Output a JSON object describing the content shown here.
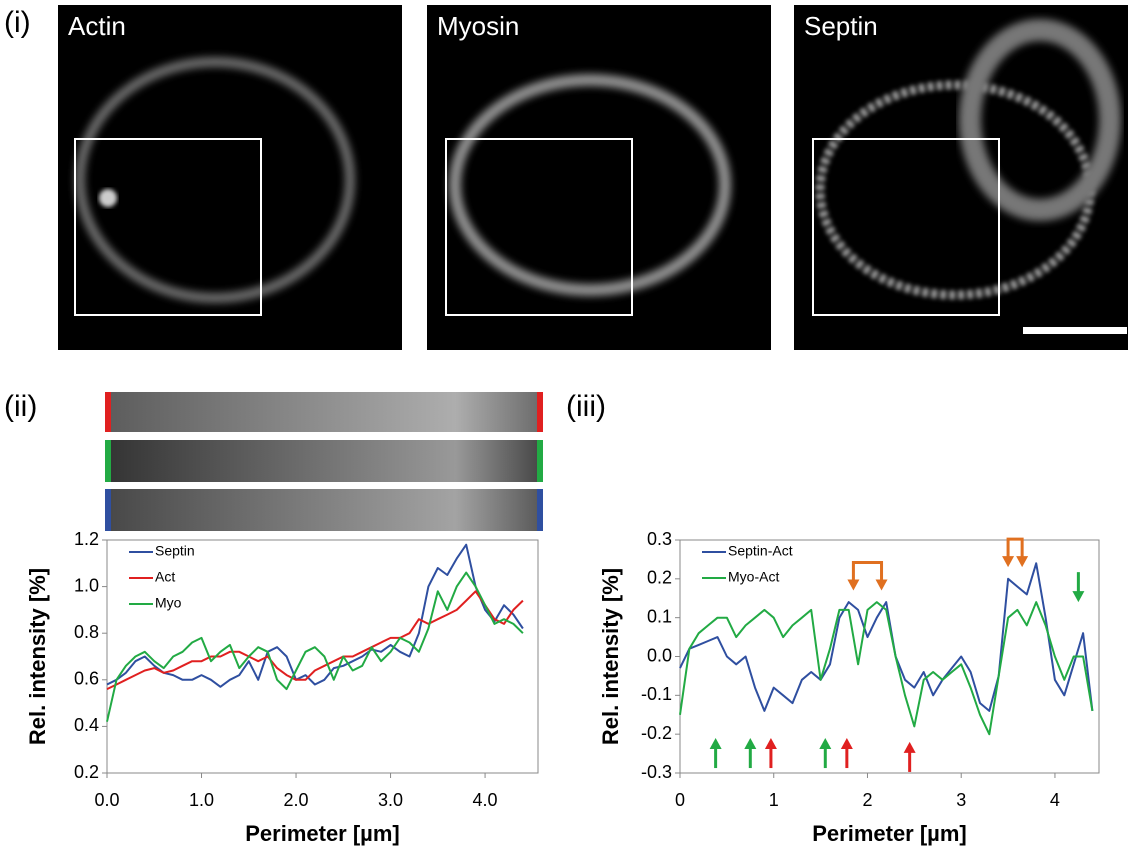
{
  "panels": {
    "labels": [
      "(i)",
      "(ii)",
      "(iii)"
    ]
  },
  "images": [
    {
      "label": "Actin"
    },
    {
      "label": "Myosin"
    },
    {
      "label": "Septin"
    }
  ],
  "chart_data": [
    {
      "type": "line",
      "x_label": "Perimeter [µm]",
      "y_label": "Rel. intensity [%]",
      "x": [
        0,
        0.1,
        0.2,
        0.3,
        0.4,
        0.5,
        0.6,
        0.7,
        0.8,
        0.9,
        1.0,
        1.1,
        1.2,
        1.3,
        1.4,
        1.5,
        1.6,
        1.7,
        1.8,
        1.9,
        2.0,
        2.1,
        2.2,
        2.3,
        2.4,
        2.5,
        2.6,
        2.7,
        2.8,
        2.9,
        3.0,
        3.1,
        3.2,
        3.3,
        3.4,
        3.5,
        3.6,
        3.7,
        3.8,
        3.9,
        4.0,
        4.1,
        4.2,
        4.3,
        4.4
      ],
      "series": [
        {
          "name": "Septin",
          "color": "#2f4fa0",
          "values": [
            0.58,
            0.6,
            0.63,
            0.68,
            0.7,
            0.66,
            0.63,
            0.62,
            0.6,
            0.6,
            0.62,
            0.6,
            0.57,
            0.6,
            0.62,
            0.68,
            0.6,
            0.72,
            0.74,
            0.7,
            0.6,
            0.62,
            0.58,
            0.6,
            0.65,
            0.66,
            0.68,
            0.7,
            0.73,
            0.72,
            0.75,
            0.72,
            0.7,
            0.8,
            1.0,
            1.08,
            1.05,
            1.12,
            1.18,
            1.0,
            0.9,
            0.85,
            0.92,
            0.88,
            0.82
          ]
        },
        {
          "name": "Act",
          "color": "#e02020",
          "values": [
            0.56,
            0.58,
            0.6,
            0.62,
            0.64,
            0.65,
            0.63,
            0.64,
            0.66,
            0.68,
            0.68,
            0.7,
            0.7,
            0.72,
            0.72,
            0.7,
            0.68,
            0.7,
            0.65,
            0.62,
            0.6,
            0.6,
            0.64,
            0.66,
            0.68,
            0.7,
            0.7,
            0.72,
            0.74,
            0.76,
            0.78,
            0.78,
            0.8,
            0.86,
            0.84,
            0.86,
            0.88,
            0.9,
            0.94,
            0.98,
            0.92,
            0.86,
            0.84,
            0.9,
            0.94
          ]
        },
        {
          "name": "Myo",
          "color": "#22aa44",
          "values": [
            0.42,
            0.6,
            0.66,
            0.7,
            0.72,
            0.68,
            0.65,
            0.7,
            0.72,
            0.76,
            0.78,
            0.68,
            0.72,
            0.75,
            0.65,
            0.7,
            0.74,
            0.72,
            0.6,
            0.56,
            0.64,
            0.72,
            0.74,
            0.7,
            0.6,
            0.7,
            0.64,
            0.66,
            0.74,
            0.68,
            0.72,
            0.78,
            0.76,
            0.72,
            0.82,
            0.98,
            0.9,
            1.0,
            1.06,
            1.0,
            0.92,
            0.84,
            0.86,
            0.84,
            0.8
          ]
        }
      ],
      "xlim": [
        0,
        4.56
      ],
      "ylim": [
        0.2,
        1.2
      ],
      "xticks": [
        {
          "value": 0,
          "label": "0.0"
        },
        {
          "value": 1,
          "label": "1.0"
        },
        {
          "value": 2,
          "label": "2.0"
        },
        {
          "value": 3,
          "label": "3.0"
        },
        {
          "value": 4,
          "label": "4.0"
        }
      ],
      "yticks": [
        0.2,
        0.4,
        0.6,
        0.8,
        {
          "value": 1,
          "label": "1.0"
        },
        1.2
      ],
      "legend": "top-left"
    },
    {
      "type": "line",
      "x_label": "Perimeter [µm]",
      "y_label": "Rel. intensity [%]",
      "x": [
        0,
        0.1,
        0.2,
        0.3,
        0.4,
        0.5,
        0.6,
        0.7,
        0.8,
        0.9,
        1.0,
        1.1,
        1.2,
        1.3,
        1.4,
        1.5,
        1.6,
        1.7,
        1.8,
        1.9,
        2.0,
        2.1,
        2.2,
        2.3,
        2.4,
        2.5,
        2.6,
        2.7,
        2.8,
        2.9,
        3.0,
        3.1,
        3.2,
        3.3,
        3.4,
        3.5,
        3.6,
        3.7,
        3.8,
        3.9,
        4.0,
        4.1,
        4.2,
        4.3,
        4.4
      ],
      "series": [
        {
          "name": "Septin-Act",
          "color": "#2f4fa0",
          "values": [
            -0.03,
            0.02,
            0.03,
            0.04,
            0.05,
            0.0,
            -0.02,
            0.0,
            -0.08,
            -0.14,
            -0.08,
            -0.1,
            -0.12,
            -0.06,
            -0.04,
            -0.06,
            -0.02,
            0.1,
            0.14,
            0.12,
            0.05,
            0.1,
            0.14,
            0.0,
            -0.06,
            -0.08,
            -0.04,
            -0.1,
            -0.06,
            -0.03,
            0.0,
            -0.04,
            -0.12,
            -0.14,
            -0.05,
            0.2,
            0.18,
            0.16,
            0.24,
            0.1,
            -0.06,
            -0.1,
            -0.02,
            0.06,
            -0.14
          ]
        },
        {
          "name": "Myo-Act",
          "color": "#22aa44",
          "values": [
            -0.15,
            0.02,
            0.06,
            0.08,
            0.1,
            0.1,
            0.05,
            0.08,
            0.1,
            0.12,
            0.1,
            0.05,
            0.08,
            0.1,
            0.12,
            -0.06,
            0.02,
            0.12,
            0.12,
            -0.02,
            0.12,
            0.14,
            0.12,
            0.0,
            -0.1,
            -0.18,
            -0.06,
            -0.04,
            -0.06,
            -0.04,
            -0.02,
            -0.08,
            -0.15,
            -0.2,
            -0.05,
            0.1,
            0.12,
            0.08,
            0.14,
            0.08,
            0.0,
            -0.06,
            0.0,
            0.0,
            -0.14
          ]
        }
      ],
      "xlim": [
        0,
        4.47
      ],
      "ylim": [
        -0.3,
        0.3
      ],
      "xticks": [
        0,
        1,
        2,
        3,
        4
      ],
      "yticks": [
        -0.3,
        -0.2,
        -0.1,
        {
          "value": 0,
          "label": "0.0"
        },
        0.1,
        0.2,
        0.3
      ],
      "legend": "top-left",
      "arrows": [
        {
          "x": 0.38,
          "y": -0.21,
          "direction": "up",
          "color": "#22aa44"
        },
        {
          "x": 0.75,
          "y": -0.21,
          "direction": "up",
          "color": "#22aa44"
        },
        {
          "x": 0.97,
          "y": -0.21,
          "direction": "up",
          "color": "#e02020"
        },
        {
          "x": 1.55,
          "y": -0.21,
          "direction": "up",
          "color": "#22aa44"
        },
        {
          "x": 1.78,
          "y": -0.21,
          "direction": "up",
          "color": "#e02020"
        },
        {
          "x": 2.45,
          "y": -0.22,
          "direction": "up",
          "color": "#e02020"
        },
        {
          "x": 4.25,
          "y": 0.14,
          "direction": "down",
          "color": "#22aa44"
        }
      ],
      "brackets": [
        {
          "x": [
            1.85,
            2.15
          ],
          "y": 0.17,
          "color": "#e07020"
        },
        {
          "x": [
            3.5,
            3.65
          ],
          "y": 0.23,
          "color": "#e07020"
        }
      ]
    }
  ]
}
